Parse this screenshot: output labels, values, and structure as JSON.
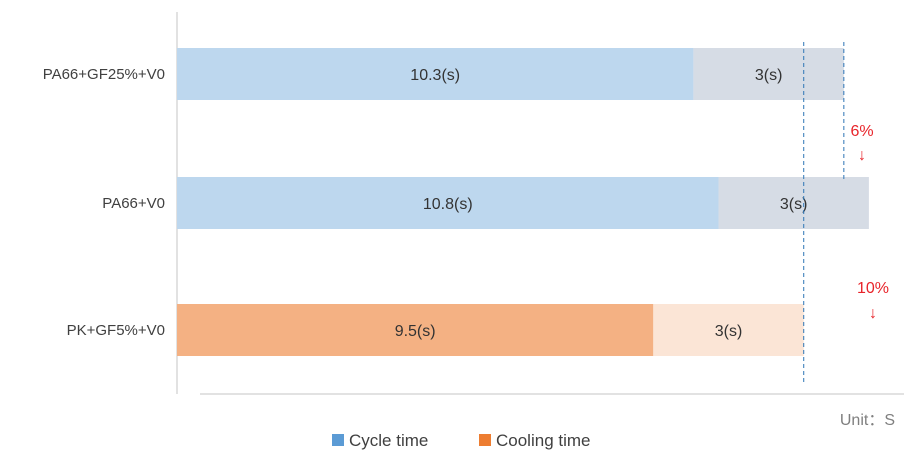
{
  "chart_data": {
    "type": "bar",
    "orientation": "horizontal",
    "stacked": true,
    "categories": [
      "PA66+GF25%+V0",
      "PA66+V0",
      "PK+GF5%+V0"
    ],
    "series": [
      {
        "values": [
          10.3,
          10.8,
          9.5
        ],
        "labels": [
          "10.3(s)",
          "10.8(s)",
          "9.5(s)"
        ]
      },
      {
        "values": [
          3,
          3,
          3
        ],
        "labels": [
          "3(s)",
          "3(s)",
          "3(s)"
        ]
      }
    ],
    "annotations": [
      {
        "text": "6%",
        "arrow": "↓"
      },
      {
        "text": "10%",
        "arrow": "↓"
      }
    ],
    "unit_label": "Unit：S",
    "legend": {
      "position": "bottom",
      "entries": [
        {
          "label": "Cycle time",
          "color": "#5b9bd5"
        },
        {
          "label": "Cooling time",
          "color": "#ed7d31"
        }
      ]
    },
    "colors": {
      "pa_cycle": "#bdd7ee",
      "pa_cooling": "#d6dce5",
      "pk_cycle": "#f4b183",
      "pk_cooling": "#fbe5d6",
      "dashed": "#2e75b6",
      "annotation": "#e8242a"
    },
    "xlim": [
      0,
      14.5
    ],
    "grid": false
  }
}
